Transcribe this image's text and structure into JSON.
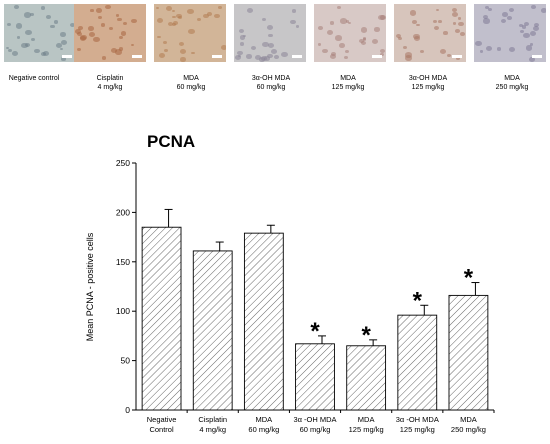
{
  "thumbnails": [
    {
      "label_line1": "Negative control",
      "label_line2": "",
      "tone": "#b9c5c4",
      "spot": "#6e7d88"
    },
    {
      "label_line1": "Cisplatin",
      "label_line2": "4 mg/kg",
      "tone": "#d3ad90",
      "spot": "#a86440"
    },
    {
      "label_line1": "MDA",
      "label_line2": "60 mg/kg",
      "tone": "#d2b598",
      "spot": "#b07a50"
    },
    {
      "label_line1": "3α-OH MDA",
      "label_line2": "60 mg/kg",
      "tone": "#c7c6c8",
      "spot": "#8a8598"
    },
    {
      "label_line1": "MDA",
      "label_line2": "125 mg/kg",
      "tone": "#d8c9c6",
      "spot": "#a7807a"
    },
    {
      "label_line1": "3α-OH MDA",
      "label_line2": "125 mg/kg",
      "tone": "#d7c5bc",
      "spot": "#a77562"
    },
    {
      "label_line1": "MDA",
      "label_line2": "250 mg/kg",
      "tone": "#c1bfcc",
      "spot": "#7f7a95"
    }
  ],
  "chart_data": {
    "type": "bar",
    "title": "PCNA",
    "xlabel": "",
    "ylabel": "Mean PCNA - positive cells",
    "ylim": [
      0,
      250
    ],
    "yticks": [
      0,
      50,
      100,
      150,
      200,
      250
    ],
    "categories": [
      {
        "line1": "Negative",
        "line2": "Control"
      },
      {
        "line1": "Cisplatin",
        "line2": "4 mg/kg"
      },
      {
        "line1": "MDA",
        "line2": "60 mg/kg"
      },
      {
        "line1": "3α -OH MDA",
        "line2": "60 mg/kg"
      },
      {
        "line1": "MDA",
        "line2": "125 mg/kg"
      },
      {
        "line1": "3α -OH MDA",
        "line2": "125 mg/kg"
      },
      {
        "line1": "MDA",
        "line2": "250 mg/kg"
      }
    ],
    "values": [
      185,
      161,
      179,
      67,
      65,
      96,
      116
    ],
    "errors": [
      18,
      9,
      8,
      8,
      6,
      10,
      13
    ],
    "significant": [
      false,
      false,
      false,
      true,
      true,
      true,
      true
    ],
    "significance_marker": "*",
    "fill": "hatched",
    "grid": false
  }
}
